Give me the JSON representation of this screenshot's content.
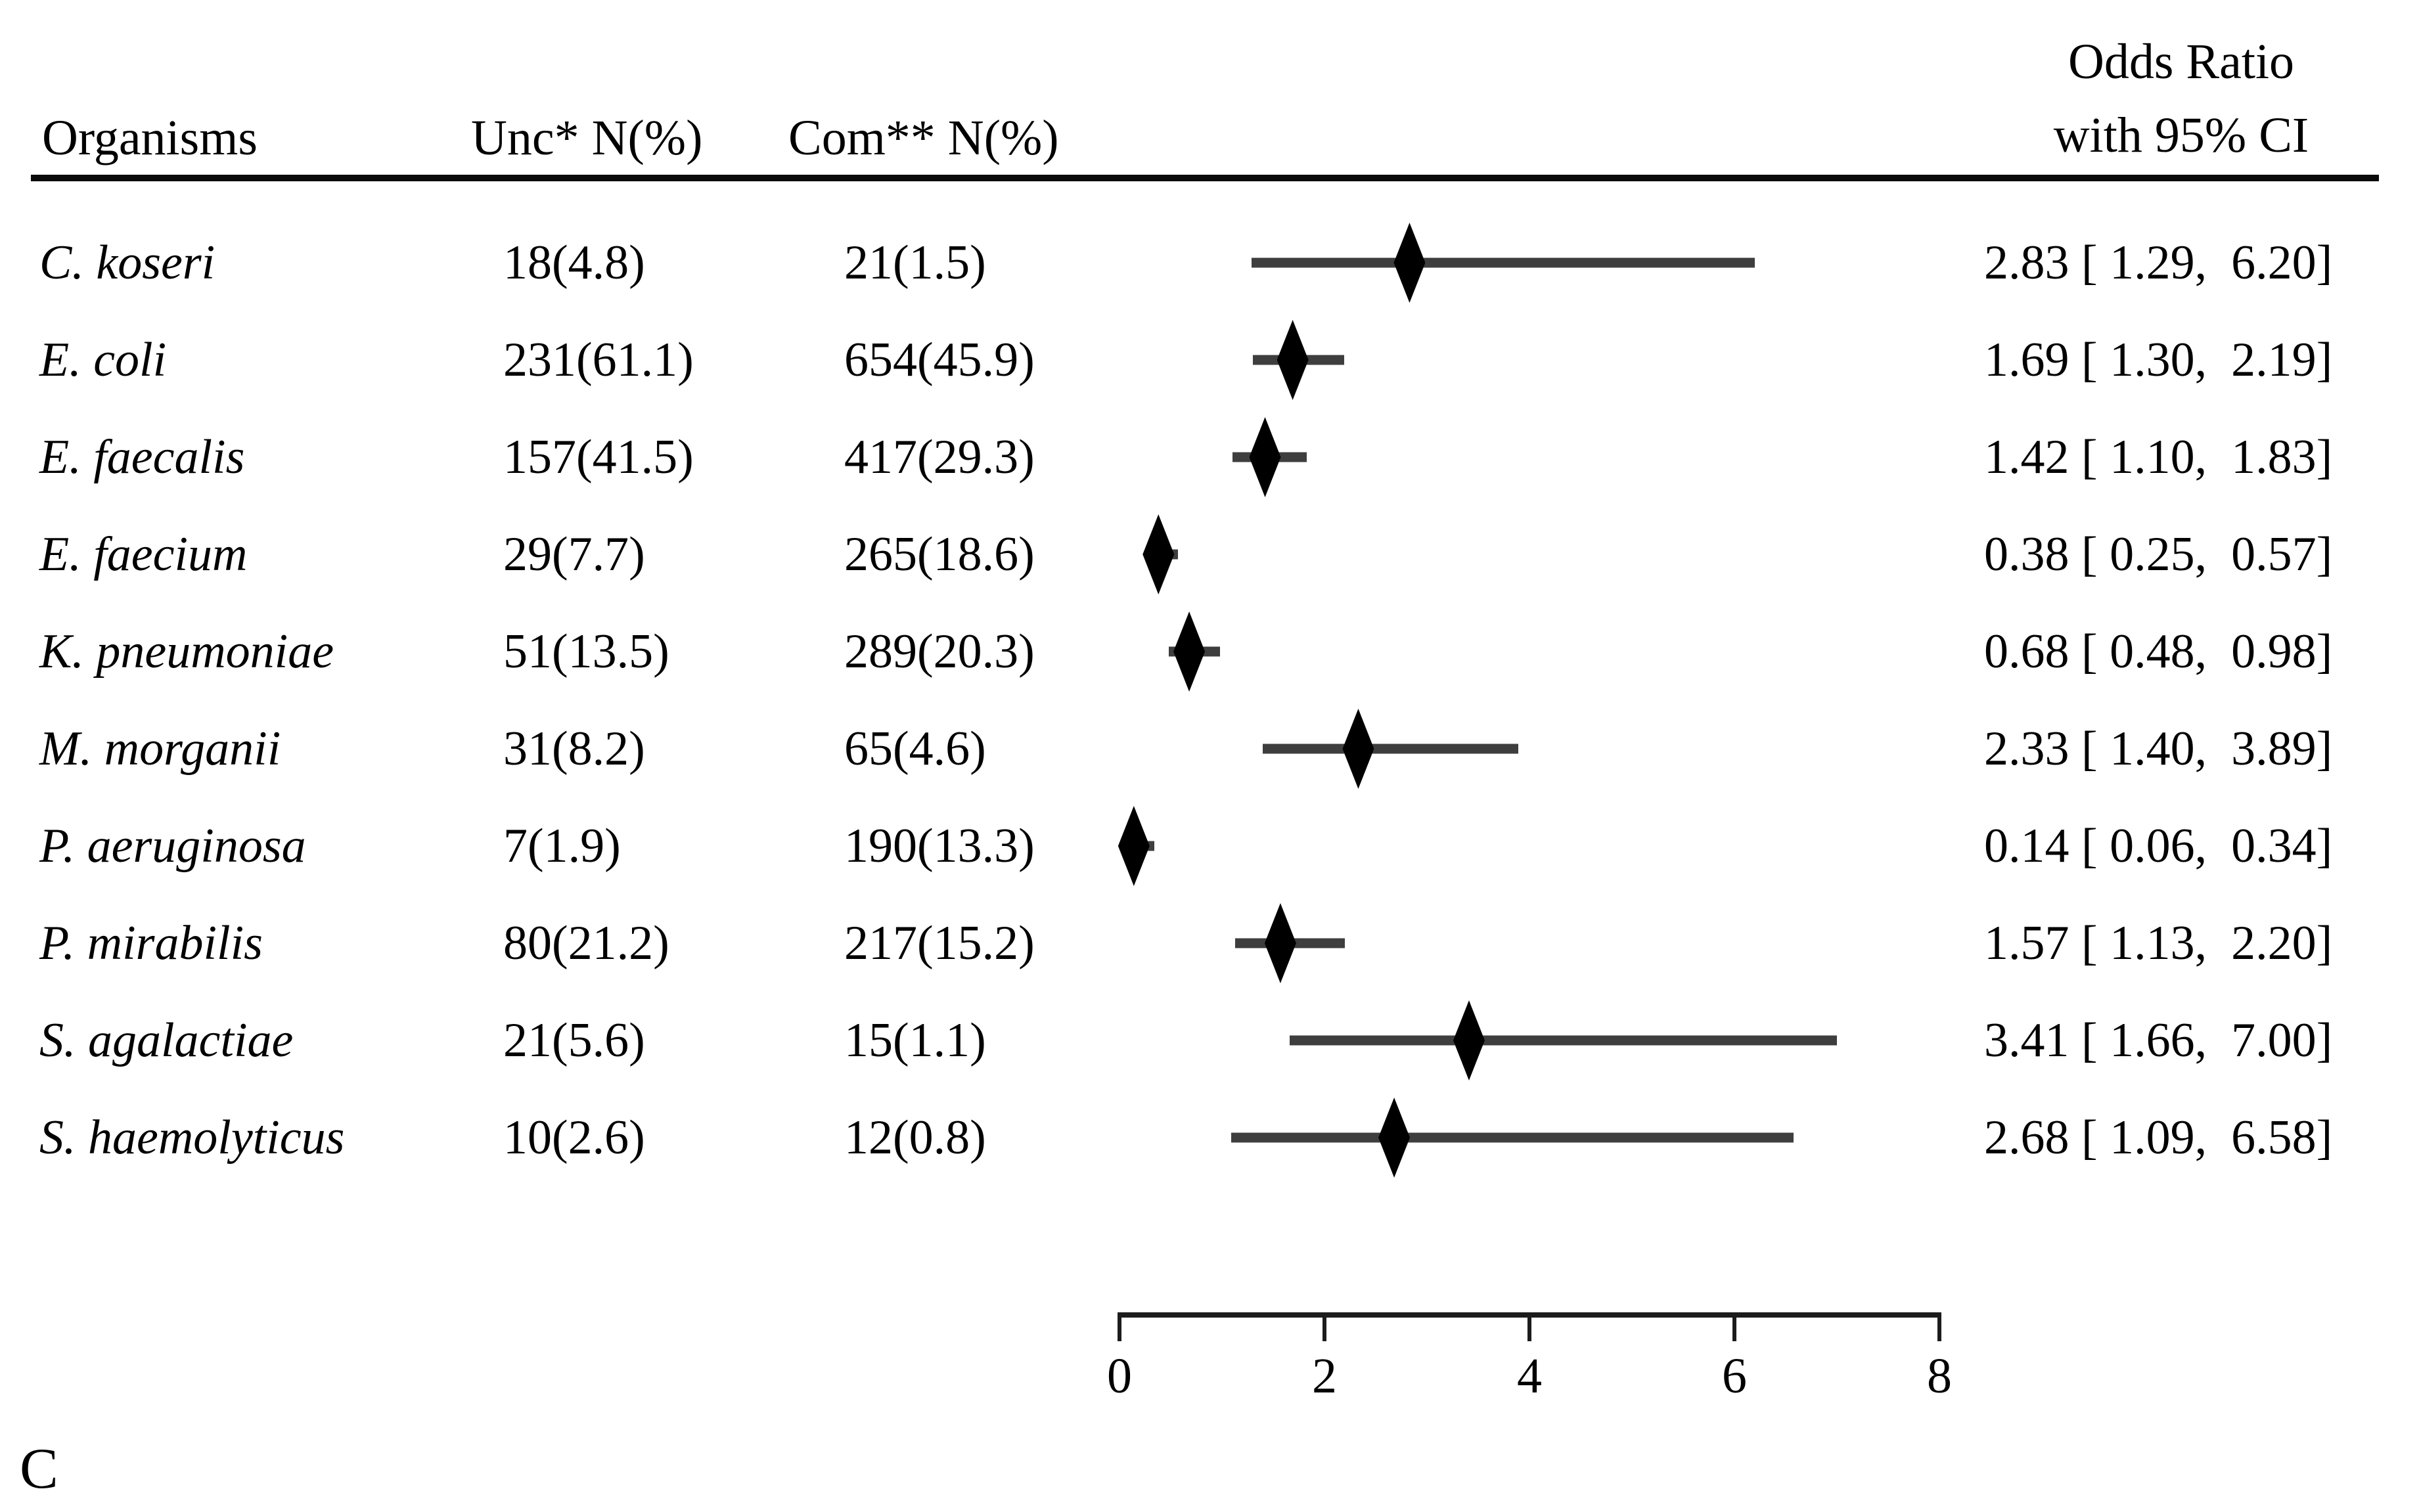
{
  "figure": {
    "panel_label": "C",
    "header": {
      "organisms": "Organisms",
      "unc": "Unc* N(%)",
      "com": "Com** N(%)",
      "or_line1": "Odds Ratio",
      "or_line2": "with 95% CI"
    },
    "colors": {
      "text": "#000000",
      "diamond": "#000000",
      "ci_line": "#3e3e3e",
      "axis": "#1c1c1c",
      "background": "#ffffff"
    }
  },
  "chart_data": {
    "type": "forest",
    "title": "",
    "xlabel": "",
    "xlim": [
      0,
      8
    ],
    "x_axis": {
      "min": 0,
      "max": 8,
      "ticks": [
        0,
        2,
        4,
        6,
        8
      ]
    },
    "legend": "none",
    "grid": false,
    "rows": [
      {
        "organism": "C. koseri",
        "unc": "18(4.8)",
        "com": "21(1.5)",
        "or": 2.83,
        "ci_low": 1.29,
        "ci_high": 6.2,
        "or_label": "2.83 [ 1.29,  6.20]"
      },
      {
        "organism": "E. coli",
        "unc": "231(61.1)",
        "com": "654(45.9)",
        "or": 1.69,
        "ci_low": 1.3,
        "ci_high": 2.19,
        "or_label": "1.69 [ 1.30,  2.19]"
      },
      {
        "organism": "E. faecalis",
        "unc": "157(41.5)",
        "com": "417(29.3)",
        "or": 1.42,
        "ci_low": 1.1,
        "ci_high": 1.83,
        "or_label": "1.42 [ 1.10,  1.83]"
      },
      {
        "organism": "E. faecium",
        "unc": "29(7.7)",
        "com": "265(18.6)",
        "or": 0.38,
        "ci_low": 0.25,
        "ci_high": 0.57,
        "or_label": "0.38 [ 0.25,  0.57]"
      },
      {
        "organism": "K. pneumoniae",
        "unc": "51(13.5)",
        "com": "289(20.3)",
        "or": 0.68,
        "ci_low": 0.48,
        "ci_high": 0.98,
        "or_label": "0.68 [ 0.48,  0.98]"
      },
      {
        "organism": "M. morganii",
        "unc": "31(8.2)",
        "com": "65(4.6)",
        "or": 2.33,
        "ci_low": 1.4,
        "ci_high": 3.89,
        "or_label": "2.33 [ 1.40,  3.89]"
      },
      {
        "organism": "P. aeruginosa",
        "unc": "7(1.9)",
        "com": "190(13.3)",
        "or": 0.14,
        "ci_low": 0.06,
        "ci_high": 0.34,
        "or_label": "0.14 [ 0.06,  0.34]"
      },
      {
        "organism": "P. mirabilis",
        "unc": "80(21.2)",
        "com": "217(15.2)",
        "or": 1.57,
        "ci_low": 1.13,
        "ci_high": 2.2,
        "or_label": "1.57 [ 1.13,  2.20]"
      },
      {
        "organism": "S. agalactiae",
        "unc": "21(5.6)",
        "com": "15(1.1)",
        "or": 3.41,
        "ci_low": 1.66,
        "ci_high": 7.0,
        "or_label": "3.41 [ 1.66,  7.00]"
      },
      {
        "organism": "S. haemolyticus",
        "unc": "10(2.6)",
        "com": "12(0.8)",
        "or": 2.68,
        "ci_low": 1.09,
        "ci_high": 6.58,
        "or_label": "2.68 [ 1.09,  6.58]"
      }
    ]
  }
}
